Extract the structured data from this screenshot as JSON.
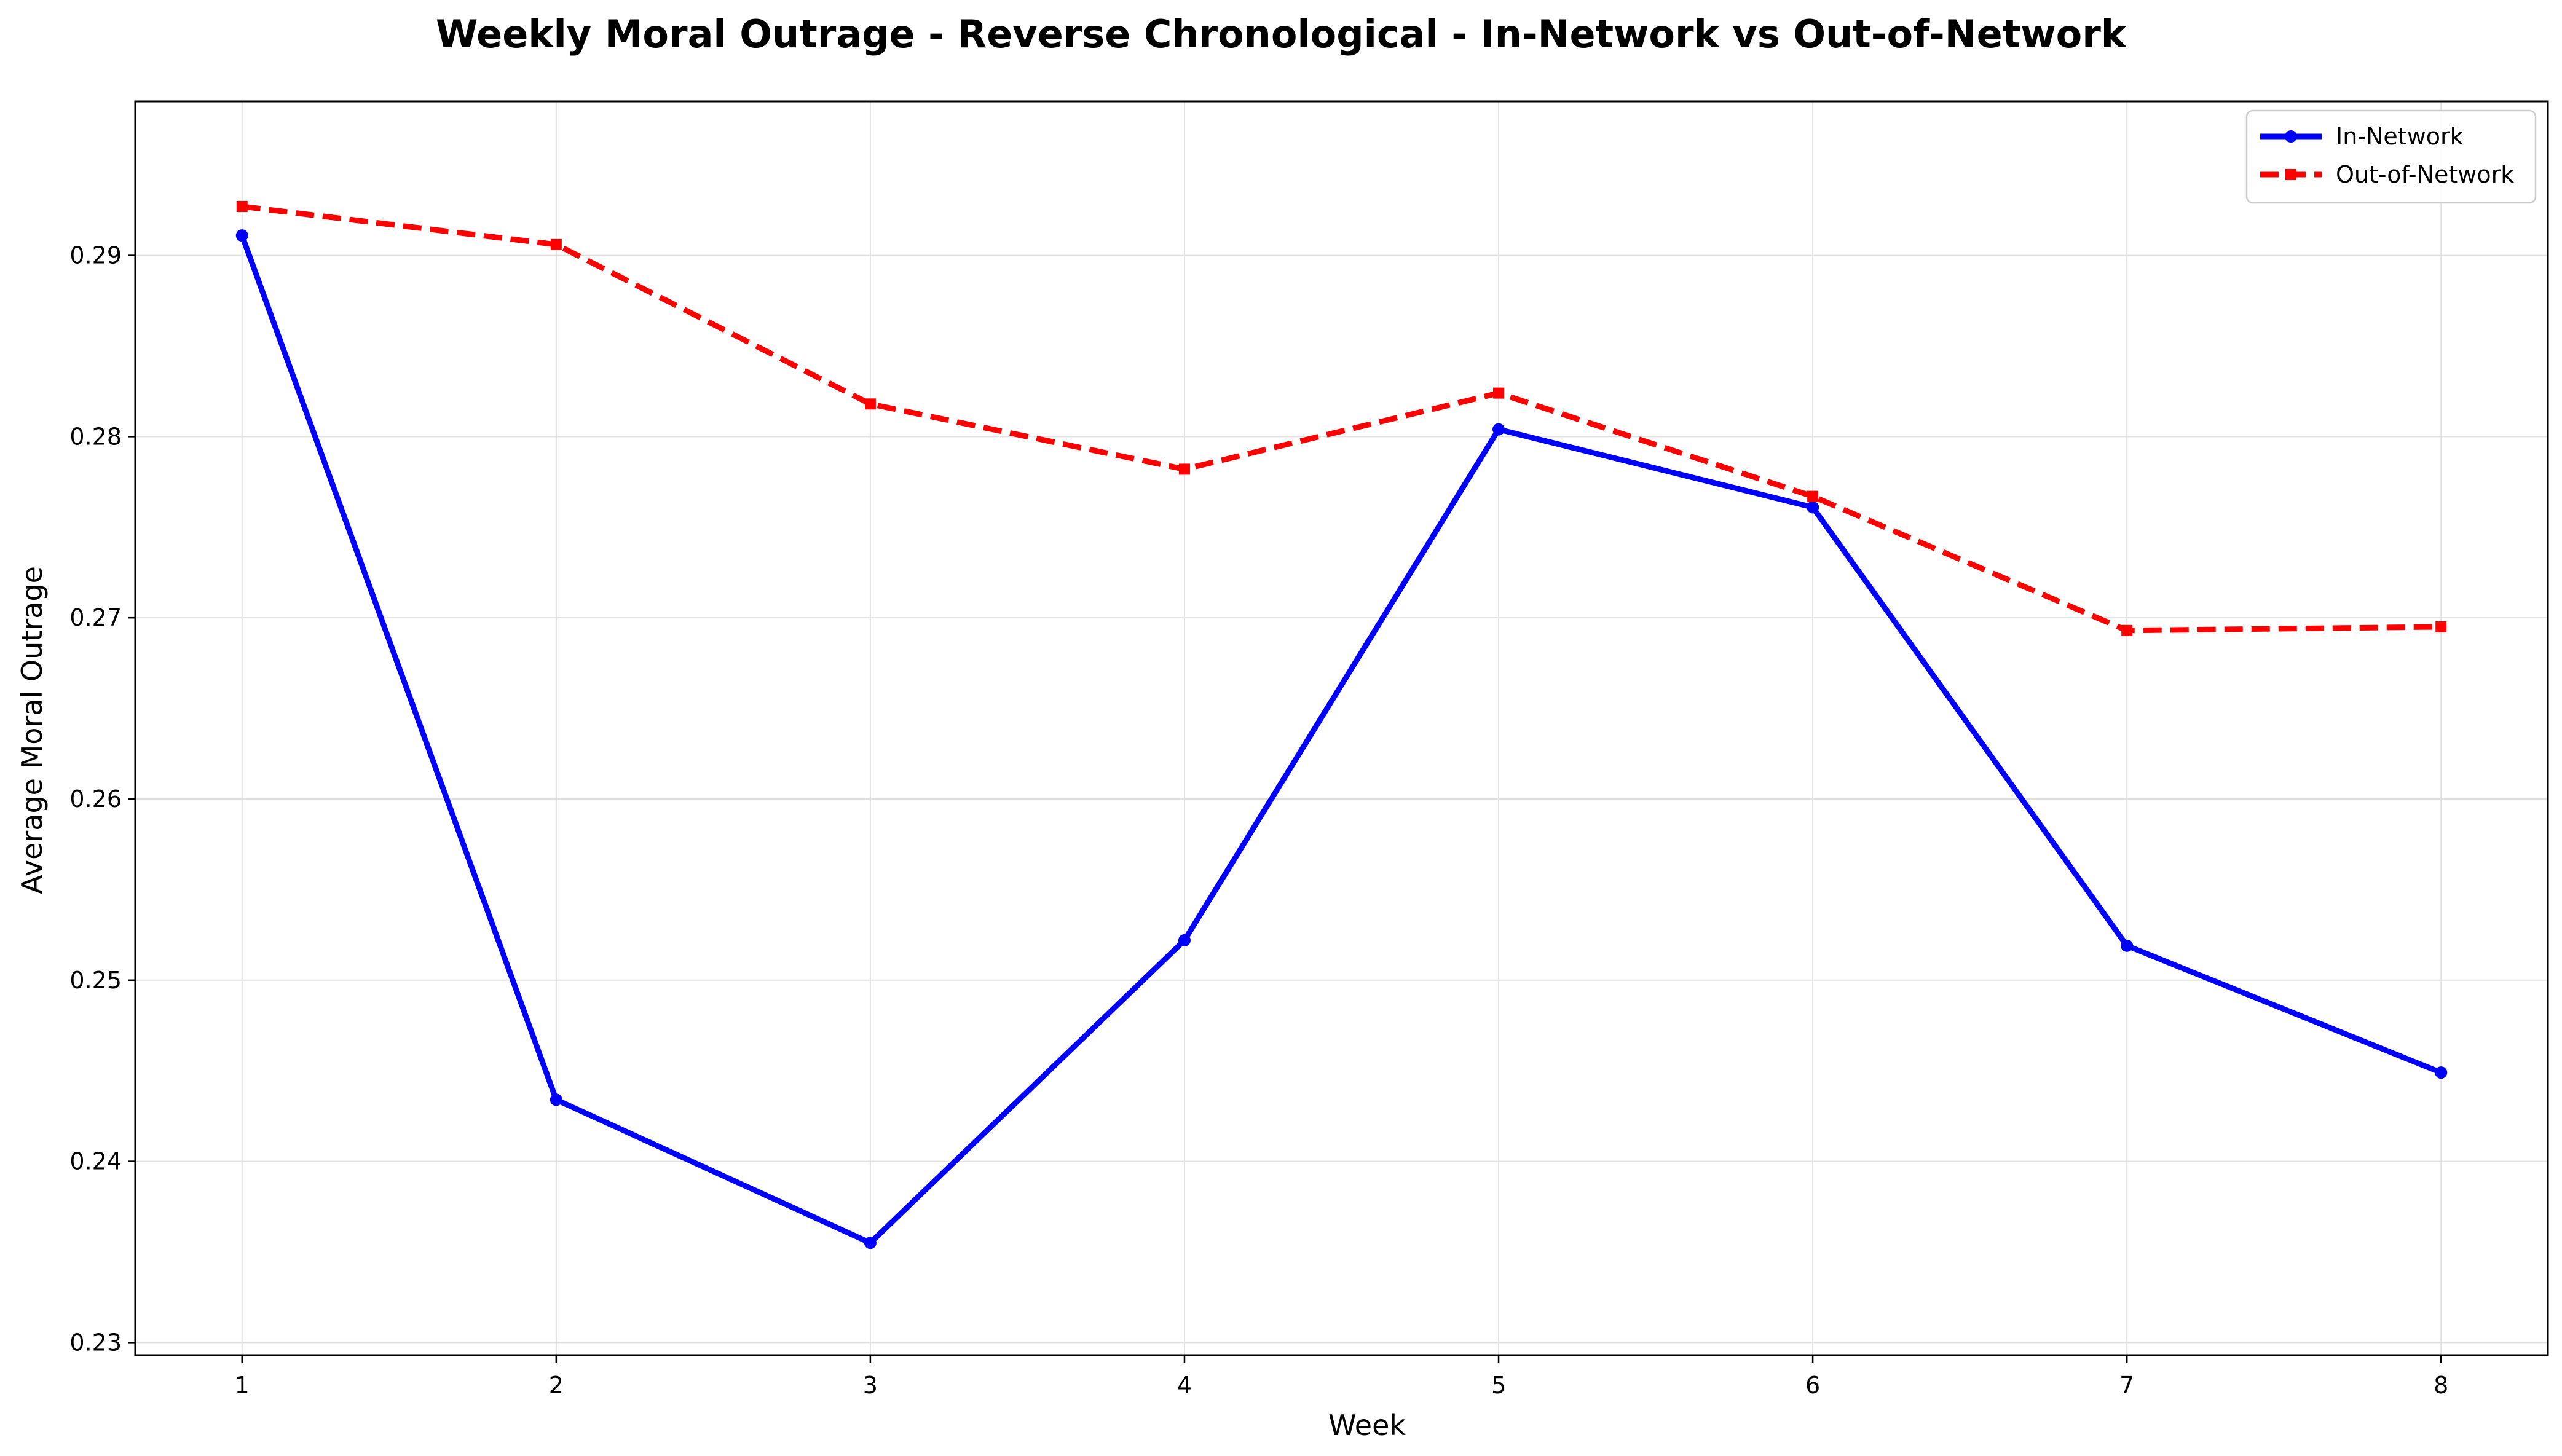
{
  "chart_data": {
    "type": "line",
    "title": "Weekly Moral Outrage - Reverse Chronological - In-Network vs Out-of-Network",
    "xlabel": "Week",
    "ylabel": "Average Moral Outrage",
    "x": [
      1,
      2,
      3,
      4,
      5,
      6,
      7,
      8
    ],
    "xlim": [
      0.66,
      8.34
    ],
    "ylim": [
      0.2293,
      0.2985
    ],
    "xticks": [
      "1",
      "2",
      "3",
      "4",
      "5",
      "6",
      "7",
      "8"
    ],
    "yticks": [
      "0.23",
      "0.24",
      "0.25",
      "0.26",
      "0.27",
      "0.28",
      "0.29"
    ],
    "grid": true,
    "legend": "top-right",
    "series": [
      {
        "name": "In-Network",
        "color": "#0000ff",
        "line_style": "solid",
        "marker": "circle",
        "values": [
          0.2911,
          0.2434,
          0.2355,
          0.2522,
          0.2804,
          0.2761,
          0.2519,
          0.2449
        ]
      },
      {
        "name": "Out-of-Network",
        "color": "#ff0000",
        "line_style": "dashed",
        "marker": "square",
        "values": [
          0.2927,
          0.2906,
          0.2818,
          0.2782,
          0.2824,
          0.2767,
          0.2693,
          0.2695
        ]
      }
    ]
  }
}
